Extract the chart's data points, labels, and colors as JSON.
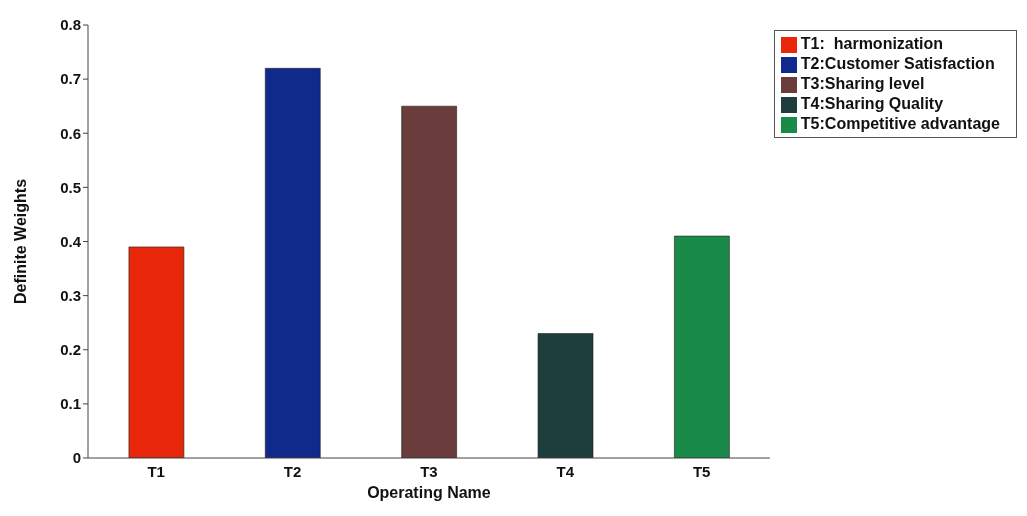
{
  "chart_data": {
    "type": "bar",
    "xlabel": "Operating Name",
    "ylabel": "Definite Weights",
    "categories": [
      "T1",
      "T2",
      "T3",
      "T4",
      "T5"
    ],
    "stacked": true,
    "series": [
      {
        "name": "T1:  harmonization",
        "color": "#e8260a",
        "values": [
          0.39,
          null,
          null,
          null,
          null
        ]
      },
      {
        "name": "T2:Customer Satisfaction",
        "color": "#0f2a8a",
        "values": [
          null,
          0.72,
          null,
          null,
          null
        ]
      },
      {
        "name": "T3:Sharing level",
        "color": "#6a3c3c",
        "values": [
          null,
          null,
          0.65,
          null,
          null
        ]
      },
      {
        "name": "T4:Sharing Quality",
        "color": "#1e3d3d",
        "values": [
          null,
          null,
          null,
          0.23,
          null
        ]
      },
      {
        "name": "T5:Competitive advantage",
        "color": "#1a8a48",
        "values": [
          null,
          null,
          null,
          null,
          0.41
        ]
      }
    ],
    "ylim": [
      0,
      0.8
    ],
    "yticks": [
      0,
      0.1,
      0.2,
      0.3,
      0.4,
      0.5,
      0.6,
      0.7,
      0.8
    ],
    "grid": false,
    "legend": "top right"
  }
}
